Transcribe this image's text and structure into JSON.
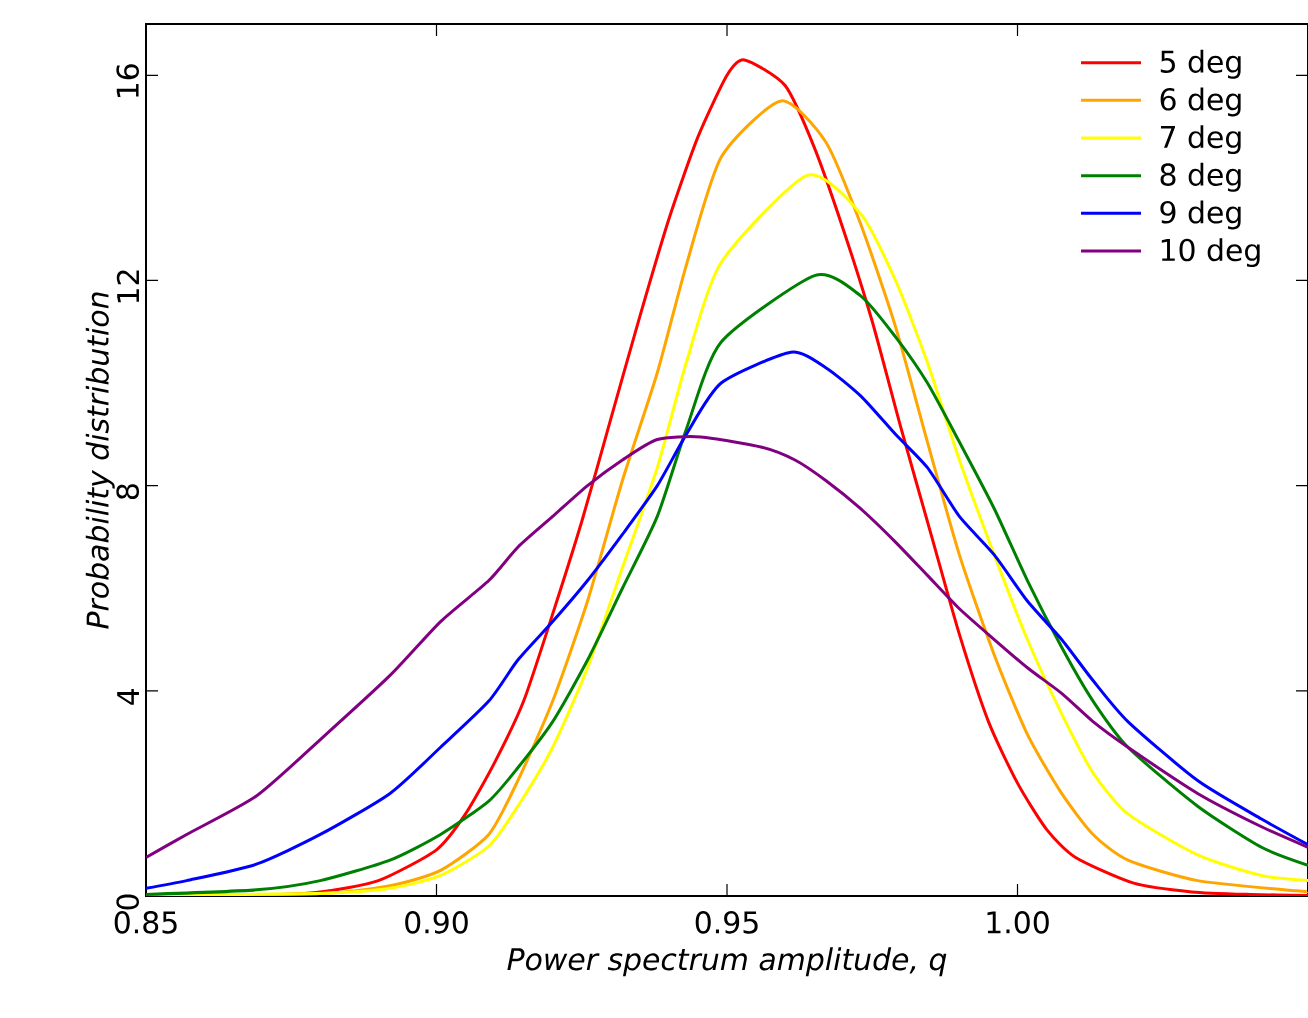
{
  "chart_data": {
    "type": "line",
    "xlabel": "Power spectrum amplitude, q",
    "ylabel": "Probability distribution",
    "xlim": [
      0.85,
      1.05
    ],
    "ylim": [
      0,
      17
    ],
    "xticks": [
      0.85,
      {
        "value": 0.9,
        "label": "0.90"
      },
      0.95,
      {
        "value": 1.0,
        "label": "1.00"
      }
    ],
    "yticks": [
      0,
      4,
      8,
      12,
      16
    ],
    "grid": false,
    "legend": "top right",
    "line_style": "solid",
    "series": [
      {
        "name": "5 deg",
        "color": "#ff0000",
        "x": [
          0.85,
          0.87,
          0.88,
          0.89,
          0.9,
          0.905,
          0.91,
          0.915,
          0.92,
          0.925,
          0.93,
          0.935,
          0.94,
          0.945,
          0.95,
          0.953,
          0.96,
          0.965,
          0.97,
          0.975,
          0.98,
          0.985,
          0.99,
          0.995,
          1.0,
          1.005,
          1.01,
          1.02,
          1.03,
          1.04,
          1.05
        ],
        "values": [
          0.0,
          0.02,
          0.08,
          0.3,
          0.9,
          1.6,
          2.6,
          3.8,
          5.5,
          7.3,
          9.3,
          11.3,
          13.2,
          14.8,
          16.0,
          16.3,
          15.8,
          14.6,
          13.0,
          11.2,
          9.1,
          7.1,
          5.1,
          3.4,
          2.2,
          1.3,
          0.75,
          0.25,
          0.08,
          0.03,
          0.01
        ]
      },
      {
        "name": "6 deg",
        "color": "#ffa500",
        "x": [
          0.85,
          0.88,
          0.892,
          0.9007,
          0.909,
          0.914,
          0.92,
          0.926,
          0.932,
          0.938,
          0.943,
          0.949,
          0.9593,
          0.967,
          0.973,
          0.979,
          0.9845,
          0.99,
          0.996,
          1.0017,
          1.0076,
          1.013,
          1.019,
          1.031,
          1.048,
          1.05
        ],
        "values": [
          0.01,
          0.05,
          0.2,
          0.5,
          1.2,
          2.25,
          3.8,
          5.75,
          8.1,
          10.2,
          12.3,
          14.4,
          15.5,
          14.7,
          13.1,
          11.1,
          8.85,
          6.65,
          4.7,
          3.15,
          2.0,
          1.2,
          0.7,
          0.3,
          0.1,
          0.09
        ]
      },
      {
        "name": "7 deg",
        "color": "#ffff00",
        "x": [
          0.85,
          0.88,
          0.892,
          0.9007,
          0.909,
          0.914,
          0.92,
          0.926,
          0.932,
          0.938,
          0.943,
          0.949,
          0.9638,
          0.973,
          0.979,
          0.9845,
          0.99,
          0.996,
          1.0017,
          1.0076,
          1.013,
          1.019,
          1.031,
          1.042,
          1.05
        ],
        "values": [
          0.01,
          0.05,
          0.15,
          0.4,
          0.97,
          1.75,
          2.9,
          4.45,
          6.4,
          8.35,
          10.4,
          12.35,
          14.05,
          13.3,
          12.0,
          10.4,
          8.5,
          6.65,
          5.0,
          3.55,
          2.4,
          1.6,
          0.8,
          0.4,
          0.3
        ]
      },
      {
        "name": "8 deg",
        "color": "#008000",
        "x": [
          0.85,
          0.869,
          0.88,
          0.892,
          0.9007,
          0.909,
          0.914,
          0.92,
          0.926,
          0.932,
          0.938,
          0.943,
          0.949,
          0.9652,
          0.973,
          0.979,
          0.9845,
          0.99,
          0.996,
          1.0017,
          1.0076,
          1.013,
          1.019,
          1.031,
          1.042,
          1.05
        ],
        "values": [
          0.03,
          0.12,
          0.3,
          0.7,
          1.2,
          1.85,
          2.5,
          3.4,
          4.6,
          6.0,
          7.4,
          9.1,
          10.8,
          12.1,
          11.7,
          10.9,
          10.0,
          8.85,
          7.55,
          6.15,
          4.85,
          3.8,
          2.9,
          1.75,
          0.95,
          0.6
        ]
      },
      {
        "name": "9 deg",
        "color": "#0000ff",
        "x": [
          0.85,
          0.857,
          0.869,
          0.88,
          0.892,
          0.9007,
          0.909,
          0.914,
          0.92,
          0.926,
          0.932,
          0.938,
          0.943,
          0.949,
          0.961,
          0.967,
          0.973,
          0.979,
          0.9845,
          0.99,
          0.996,
          1.0017,
          1.0076,
          1.013,
          1.019,
          1.031,
          1.042,
          1.05
        ],
        "values": [
          0.15,
          0.3,
          0.62,
          1.2,
          2.0,
          2.9,
          3.8,
          4.6,
          5.35,
          6.15,
          7.05,
          8.0,
          9.0,
          10.0,
          10.6,
          10.3,
          9.75,
          9.0,
          8.35,
          7.4,
          6.65,
          5.75,
          5.0,
          4.2,
          3.4,
          2.25,
          1.5,
          1.0
        ]
      },
      {
        "name": "10 deg",
        "color": "#800080",
        "x": [
          0.85,
          0.857,
          0.869,
          0.88,
          0.892,
          0.9007,
          0.909,
          0.914,
          0.92,
          0.926,
          0.932,
          0.938,
          0.9455,
          0.956,
          0.9617,
          0.967,
          0.973,
          0.979,
          0.9845,
          0.99,
          0.996,
          1.0017,
          1.0076,
          1.013,
          1.019,
          1.031,
          1.042,
          1.05
        ],
        "values": [
          0.75,
          1.2,
          1.95,
          3.05,
          4.3,
          5.35,
          6.15,
          6.8,
          7.4,
          8.0,
          8.5,
          8.9,
          8.95,
          8.75,
          8.5,
          8.1,
          7.55,
          6.9,
          6.25,
          5.6,
          5.0,
          4.45,
          3.95,
          3.4,
          2.9,
          2.0,
          1.35,
          0.95
        ]
      }
    ]
  }
}
